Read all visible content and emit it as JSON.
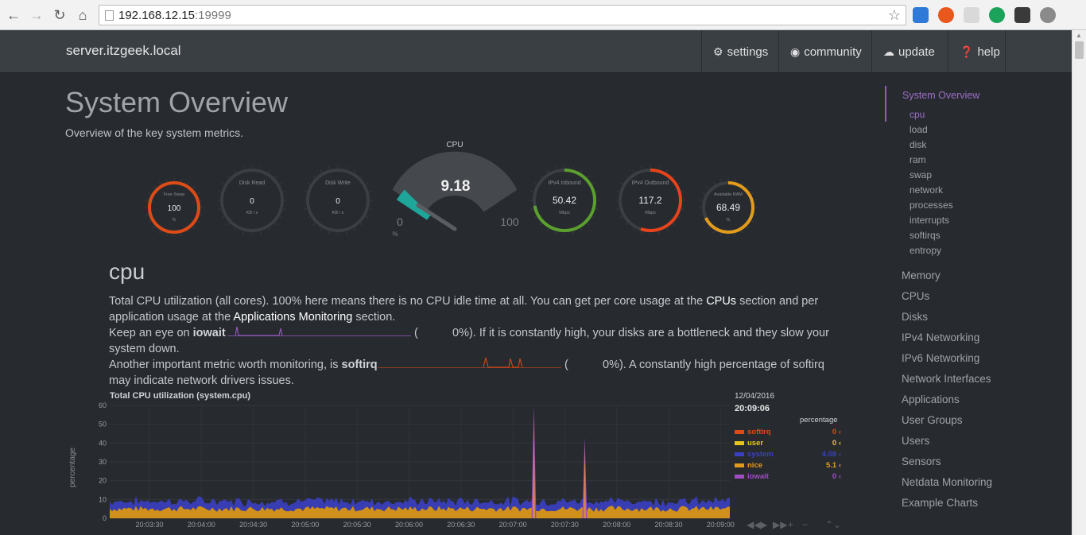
{
  "browser": {
    "url_host": "192.168.12.15",
    "url_port": ":19999"
  },
  "nav": {
    "brand": "server.itzgeek.local",
    "items": [
      {
        "label": "settings",
        "icon": "gear-icon"
      },
      {
        "label": "community",
        "icon": "github-icon"
      },
      {
        "label": "update",
        "icon": "cloud-download-icon"
      },
      {
        "label": "help",
        "icon": "question-circle-icon"
      }
    ]
  },
  "main": {
    "title": "System Overview",
    "subtitle": "Overview of the key system metrics."
  },
  "gauges": [
    {
      "label": "Free Swap",
      "value": "100",
      "units": "%",
      "color": "#dd4b16",
      "fraction": 1.0
    },
    {
      "label": "Disk Read",
      "value": "0",
      "units": "KB / s",
      "color": "#4a4e52",
      "fraction": 0
    },
    {
      "label": "Disk Write",
      "value": "0",
      "units": "KB / s",
      "color": "#4a4e52",
      "fraction": 0
    },
    {
      "label": "IPv4 Inbound",
      "value": "50.42",
      "units": "Mbps",
      "color": "#5ba02e",
      "fraction": 0.72
    },
    {
      "label": "IPv4 Outbound",
      "value": "117.2",
      "units": "Mbps",
      "color": "#e8431a",
      "fraction": 0.55
    },
    {
      "label": "Available RAM",
      "value": "68.49",
      "units": "%",
      "color": "#e39b1b",
      "fraction": 0.68
    }
  ],
  "cpu_gauge": {
    "title": "CPU",
    "value": "9.18",
    "min": "0",
    "max": "100",
    "units": "%",
    "fraction": 0.0918,
    "color": "#1ea69b"
  },
  "cpu_section": {
    "heading": "cpu",
    "p1_a": "Total CPU utilization (all cores). 100% here means there is no CPU idle time at all. You can get per core usage at the ",
    "p1_cpus": "CPUs",
    "p1_b": " section and per",
    "p1_c": "application usage at the ",
    "p1_apps": "Applications Monitoring",
    "p1_d": " section.",
    "p2_a": "Keep an eye on ",
    "p2_iowait": "iowait",
    "p2_paren": "(",
    "p2_val": "0%",
    "p2_b": "). If it is constantly high, your disks are a bottleneck and they slow your",
    "p2_c": "system down.",
    "p3_a": "Another important metric worth monitoring, is ",
    "p3_softirq": "softirq",
    "p3_paren": "(",
    "p3_val": "0%",
    "p3_b": "). A constantly high percentage of softirq",
    "p3_c": "may indicate network drivers issues."
  },
  "chart_data": {
    "type": "area",
    "title": "Total CPU utilization (system.cpu)",
    "ylabel": "percentage",
    "ylim": [
      0,
      60
    ],
    "yticks": [
      "60",
      "50",
      "40",
      "30",
      "20",
      "10",
      "0"
    ],
    "x_ticks": [
      "20:03:30",
      "20:04:00",
      "20:04:30",
      "20:05:00",
      "20:05:30",
      "20:06:00",
      "20:06:30",
      "20:07:00",
      "20:07:30",
      "20:08:00",
      "20:08:30",
      "20:09:00"
    ],
    "grid": true,
    "series": [
      {
        "name": "softirq",
        "value": "0",
        "color": "#dd4b16"
      },
      {
        "name": "user",
        "value": "0",
        "color": "#e8c51b"
      },
      {
        "name": "system",
        "value": "4.08",
        "color": "#3b3fc3"
      },
      {
        "name": "nice",
        "value": "5.1",
        "color": "#e39b1b"
      },
      {
        "name": "iowait",
        "value": "0",
        "color": "#a04bc3"
      }
    ],
    "spikes": [
      {
        "x": "20:07:05",
        "value": 60
      },
      {
        "x": "20:07:35",
        "value": 43
      }
    ],
    "typical_total": 9
  },
  "legend": {
    "date": "12/04/2016",
    "time": "20:09:06",
    "units": "percentage"
  },
  "sidebar": {
    "active": "System Overview",
    "sub": [
      "cpu",
      "load",
      "disk",
      "ram",
      "swap",
      "network",
      "processes",
      "interrupts",
      "softirqs",
      "entropy"
    ],
    "sections": [
      "Memory",
      "CPUs",
      "Disks",
      "IPv4 Networking",
      "IPv6 Networking",
      "Network Interfaces",
      "Applications",
      "User Groups",
      "Users",
      "Sensors",
      "Netdata Monitoring",
      "Example Charts"
    ]
  }
}
